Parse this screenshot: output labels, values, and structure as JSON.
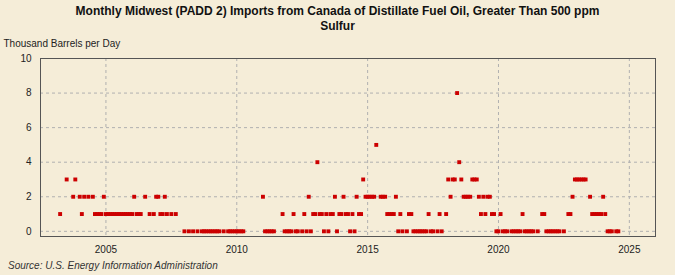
{
  "chart_data": {
    "type": "scatter",
    "title": "Monthly Midwest (PADD 2) Imports from Canada of Distillate Fuel Oil, Greater Than 500 ppm\nSulfur",
    "ylabel": "Thousand Barrels per Day",
    "annotations": [
      "Source: U.S. Energy Information Administration"
    ],
    "color": "#cc0000",
    "marker": "square",
    "grid": true,
    "xlim": [
      2002.5,
      2026.0
    ],
    "xticks": [
      2005,
      2010,
      2015,
      2020,
      2025
    ],
    "ylim": [
      -0.3,
      10
    ],
    "yticks": [
      0,
      2,
      4,
      6,
      8,
      10
    ],
    "x": [
      2003.25,
      2003.5,
      2003.75,
      2003.83,
      2004.0,
      2004.08,
      2004.17,
      2004.33,
      2004.5,
      2004.58,
      2004.67,
      2004.75,
      2004.83,
      2004.92,
      2005.0,
      2005.08,
      2005.17,
      2005.25,
      2005.33,
      2005.42,
      2005.5,
      2005.58,
      2005.67,
      2005.75,
      2005.83,
      2005.92,
      2006.0,
      2006.08,
      2006.17,
      2006.25,
      2006.33,
      2006.5,
      2006.67,
      2006.83,
      2006.92,
      2007.0,
      2007.08,
      2007.17,
      2007.25,
      2007.33,
      2007.5,
      2007.67,
      2008.0,
      2008.17,
      2008.33,
      2008.5,
      2008.67,
      2008.75,
      2008.83,
      2008.92,
      2009.0,
      2009.08,
      2009.17,
      2009.25,
      2009.33,
      2009.5,
      2009.67,
      2009.75,
      2009.83,
      2009.92,
      2010.0,
      2010.08,
      2010.17,
      2010.25,
      2011.0,
      2011.08,
      2011.17,
      2011.25,
      2011.33,
      2011.42,
      2011.75,
      2011.83,
      2011.92,
      2012.0,
      2012.08,
      2012.17,
      2012.25,
      2012.33,
      2012.5,
      2012.58,
      2012.67,
      2012.75,
      2012.83,
      2012.92,
      2013.0,
      2013.08,
      2013.17,
      2013.25,
      2013.33,
      2013.42,
      2013.5,
      2013.58,
      2013.67,
      2013.75,
      2013.83,
      2013.92,
      2014.0,
      2014.08,
      2014.17,
      2014.25,
      2014.33,
      2014.42,
      2014.5,
      2014.58,
      2014.67,
      2014.75,
      2014.83,
      2014.92,
      2015.0,
      2015.08,
      2015.17,
      2015.25,
      2015.33,
      2015.5,
      2015.58,
      2015.67,
      2015.75,
      2015.83,
      2015.92,
      2016.0,
      2016.08,
      2016.17,
      2016.25,
      2016.33,
      2016.5,
      2016.58,
      2016.67,
      2016.75,
      2016.83,
      2016.92,
      2017.0,
      2017.08,
      2017.17,
      2017.25,
      2017.33,
      2017.42,
      2017.5,
      2017.67,
      2017.75,
      2017.83,
      2018.0,
      2018.08,
      2018.17,
      2018.25,
      2018.33,
      2018.42,
      2018.5,
      2018.58,
      2018.67,
      2018.75,
      2018.83,
      2018.92,
      2019.0,
      2019.08,
      2019.17,
      2019.25,
      2019.33,
      2019.42,
      2019.5,
      2019.58,
      2019.67,
      2019.75,
      2019.83,
      2019.92,
      2020.0,
      2020.08,
      2020.17,
      2020.25,
      2020.33,
      2020.5,
      2020.58,
      2020.67,
      2020.75,
      2020.83,
      2020.92,
      2021.0,
      2021.08,
      2021.17,
      2021.25,
      2021.33,
      2021.5,
      2021.67,
      2021.75,
      2021.83,
      2021.92,
      2022.0,
      2022.08,
      2022.17,
      2022.25,
      2022.33,
      2022.5,
      2022.67,
      2022.75,
      2022.83,
      2022.92,
      2023.0,
      2023.08,
      2023.17,
      2023.25,
      2023.33,
      2023.5,
      2023.58,
      2023.67,
      2023.75,
      2023.83,
      2023.92,
      2024.0,
      2024.08,
      2024.17,
      2024.25,
      2024.33,
      2024.5,
      2024.58
    ],
    "values": [
      1,
      3,
      2,
      3,
      2,
      1,
      2,
      2,
      2,
      1,
      1,
      1,
      1,
      2,
      1,
      1,
      1,
      1,
      1,
      1,
      1,
      1,
      1,
      1,
      1,
      1,
      1,
      2,
      1,
      1,
      1,
      2,
      1,
      1,
      2,
      2,
      1,
      1,
      2,
      1,
      1,
      1,
      0,
      0,
      0,
      0,
      0,
      0,
      0,
      0,
      0,
      0,
      0,
      0,
      0,
      0,
      0,
      0,
      0,
      0,
      0,
      0,
      0,
      0,
      2,
      0,
      0,
      0,
      0,
      0,
      1,
      0,
      0,
      0,
      0,
      1,
      0,
      0,
      0,
      1,
      0,
      2,
      0,
      1,
      1,
      4,
      1,
      1,
      0,
      1,
      0,
      1,
      1,
      2,
      0,
      1,
      1,
      2,
      1,
      1,
      0,
      1,
      0,
      2,
      1,
      1,
      3,
      2,
      2,
      2,
      2,
      2,
      5,
      2,
      2,
      2,
      1,
      1,
      1,
      1,
      2,
      0,
      1,
      0,
      0,
      1,
      1,
      0,
      0,
      0,
      0,
      0,
      0,
      0,
      1,
      0,
      0,
      0,
      1,
      0,
      1,
      3,
      2,
      3,
      3,
      8,
      4,
      3,
      2,
      2,
      2,
      2,
      3,
      3,
      3,
      2,
      1,
      2,
      1,
      2,
      2,
      1,
      1,
      0,
      0,
      1,
      0,
      0,
      0,
      0,
      0,
      0,
      0,
      0,
      1,
      0,
      0,
      0,
      0,
      0,
      0,
      1,
      1,
      0,
      0,
      0,
      0,
      0,
      0,
      0,
      0,
      1,
      1,
      2,
      3,
      3,
      3,
      3,
      3,
      3,
      2,
      1,
      1,
      1,
      1,
      1,
      2,
      1,
      0,
      0,
      0,
      0,
      0
    ]
  }
}
